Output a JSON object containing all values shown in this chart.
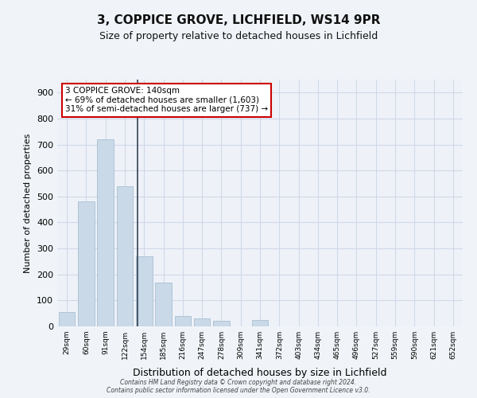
{
  "title1": "3, COPPICE GROVE, LICHFIELD, WS14 9PR",
  "title2": "Size of property relative to detached houses in Lichfield",
  "xlabel": "Distribution of detached houses by size in Lichfield",
  "ylabel": "Number of detached properties",
  "categories": [
    "29sqm",
    "60sqm",
    "91sqm",
    "122sqm",
    "154sqm",
    "185sqm",
    "216sqm",
    "247sqm",
    "278sqm",
    "309sqm",
    "341sqm",
    "372sqm",
    "403sqm",
    "434sqm",
    "465sqm",
    "496sqm",
    "527sqm",
    "559sqm",
    "590sqm",
    "621sqm",
    "652sqm"
  ],
  "values": [
    55,
    480,
    720,
    540,
    270,
    170,
    40,
    30,
    20,
    0,
    25,
    0,
    0,
    0,
    0,
    0,
    0,
    0,
    0,
    0,
    0
  ],
  "bar_color": "#c9d9e8",
  "bar_edge_color": "#a0b8cc",
  "grid_color": "#d0d8e8",
  "background_color": "#eef2f8",
  "property_line_x": 3.65,
  "annotation_text": "3 COPPICE GROVE: 140sqm\n← 69% of detached houses are smaller (1,603)\n31% of semi-detached houses are larger (737) →",
  "annotation_box_color": "#ffffff",
  "annotation_box_edge": "#cc0000",
  "footer": "Contains HM Land Registry data © Crown copyright and database right 2024.\nContains public sector information licensed under the Open Government Licence v3.0.",
  "ylim": [
    0,
    950
  ],
  "yticks": [
    0,
    100,
    200,
    300,
    400,
    500,
    600,
    700,
    800,
    900
  ]
}
